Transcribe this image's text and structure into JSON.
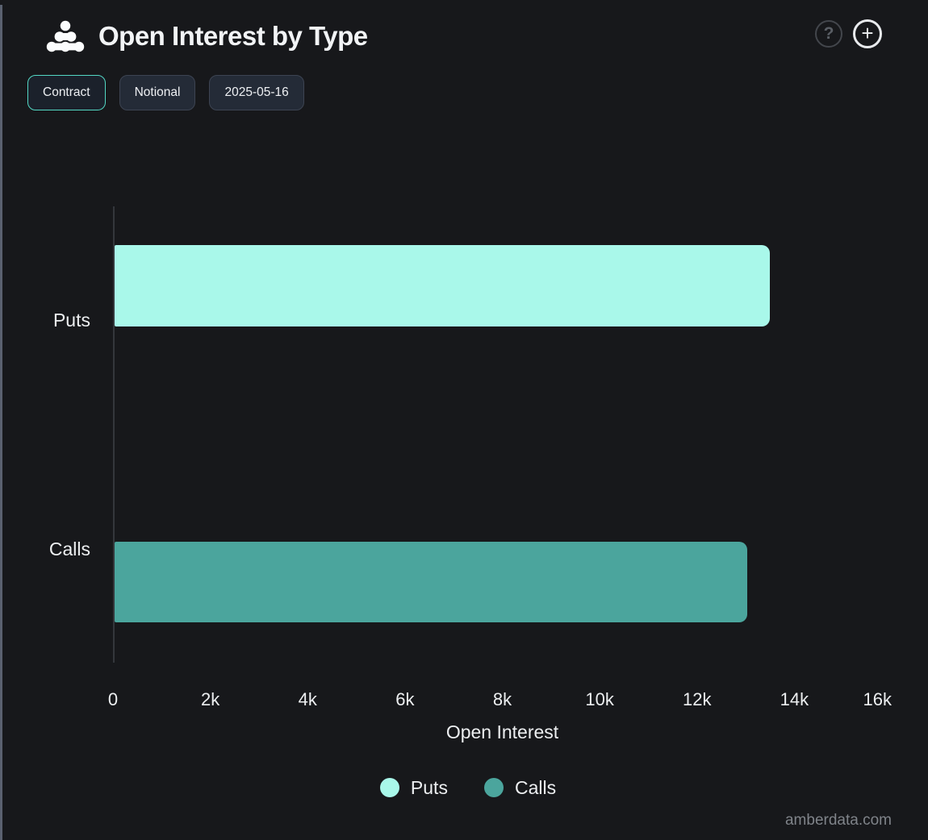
{
  "header": {
    "title": "Open Interest by Type",
    "logo_icon": "amberdata-dots-logo",
    "help_label": "?",
    "add_label": "+"
  },
  "toolbar": {
    "buttons": [
      {
        "label": "Contract",
        "active": true
      },
      {
        "label": "Notional",
        "active": false
      },
      {
        "label": "2025-05-16",
        "active": false
      }
    ]
  },
  "chart_data": {
    "type": "bar",
    "orientation": "horizontal",
    "categories": [
      "Puts",
      "Calls"
    ],
    "values": [
      13460,
      13000
    ],
    "series_colors": [
      "#a9f8ea",
      "#4ba59d"
    ],
    "title": "Open Interest by Type",
    "xlabel": "Open Interest",
    "ylabel": "",
    "xlim": [
      0,
      16000
    ],
    "x_ticks": [
      "0",
      "2k",
      "4k",
      "6k",
      "8k",
      "10k",
      "12k",
      "14k",
      "16k"
    ],
    "grid": false,
    "legend": [
      "Puts",
      "Calls"
    ],
    "legend_position": "bottom"
  },
  "footer": {
    "watermark": "amberdata.com"
  },
  "colors": {
    "background": "#17181b",
    "accent_active_border": "#53d8c4",
    "axis_line": "#34373c",
    "puts": "#a9f8ea",
    "calls": "#4ba59d"
  }
}
